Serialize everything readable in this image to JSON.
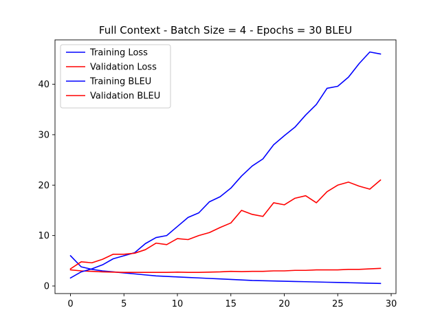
{
  "chart_data": {
    "type": "line",
    "title": "Full Context - Batch Size = 4 - Epochs = 30 BLEU",
    "xlabel": "",
    "ylabel": "",
    "xlim": [
      -1.45,
      30.45
    ],
    "ylim": [
      -1.5,
      48.8
    ],
    "xticks": [
      0,
      5,
      10,
      15,
      20,
      25,
      30
    ],
    "yticks": [
      0,
      10,
      20,
      30,
      40
    ],
    "grid": false,
    "legend_position": "top-left",
    "x": [
      0,
      1,
      2,
      3,
      4,
      5,
      6,
      7,
      8,
      9,
      10,
      11,
      12,
      13,
      14,
      15,
      16,
      17,
      18,
      19,
      20,
      21,
      22,
      23,
      24,
      25,
      26,
      27,
      28,
      29
    ],
    "series": [
      {
        "name": "Training Loss",
        "color": "#0000ff",
        "values": [
          6.0,
          3.8,
          3.3,
          3.0,
          2.8,
          2.6,
          2.4,
          2.2,
          2.0,
          1.9,
          1.8,
          1.7,
          1.6,
          1.5,
          1.4,
          1.3,
          1.2,
          1.1,
          1.05,
          1.0,
          0.95,
          0.9,
          0.85,
          0.8,
          0.75,
          0.7,
          0.65,
          0.6,
          0.55,
          0.5
        ]
      },
      {
        "name": "Validation Loss",
        "color": "#ff0000",
        "values": [
          3.2,
          3.0,
          2.9,
          2.8,
          2.75,
          2.7,
          2.7,
          2.7,
          2.7,
          2.7,
          2.75,
          2.7,
          2.7,
          2.75,
          2.8,
          2.9,
          2.85,
          2.9,
          2.9,
          3.0,
          3.0,
          3.1,
          3.1,
          3.2,
          3.2,
          3.2,
          3.3,
          3.3,
          3.4,
          3.5
        ]
      },
      {
        "name": "Training BLEU",
        "color": "#0000ff",
        "values": [
          1.6,
          2.8,
          3.4,
          4.2,
          5.4,
          6.0,
          6.6,
          8.4,
          9.6,
          10.0,
          11.8,
          13.6,
          14.5,
          16.7,
          17.7,
          19.4,
          21.8,
          23.8,
          25.2,
          28.0,
          29.8,
          31.5,
          33.9,
          36.0,
          39.2,
          39.6,
          41.4,
          44.1,
          46.4,
          46.0
        ]
      },
      {
        "name": "Validation BLEU",
        "color": "#ff0000",
        "values": [
          3.4,
          4.8,
          4.6,
          5.3,
          6.3,
          6.3,
          6.5,
          7.2,
          8.5,
          8.2,
          9.4,
          9.2,
          10.0,
          10.6,
          11.6,
          12.5,
          15.0,
          14.2,
          13.8,
          16.5,
          16.1,
          17.4,
          17.9,
          16.5,
          18.7,
          20.0,
          20.6,
          19.8,
          19.2,
          21.0
        ]
      }
    ]
  }
}
